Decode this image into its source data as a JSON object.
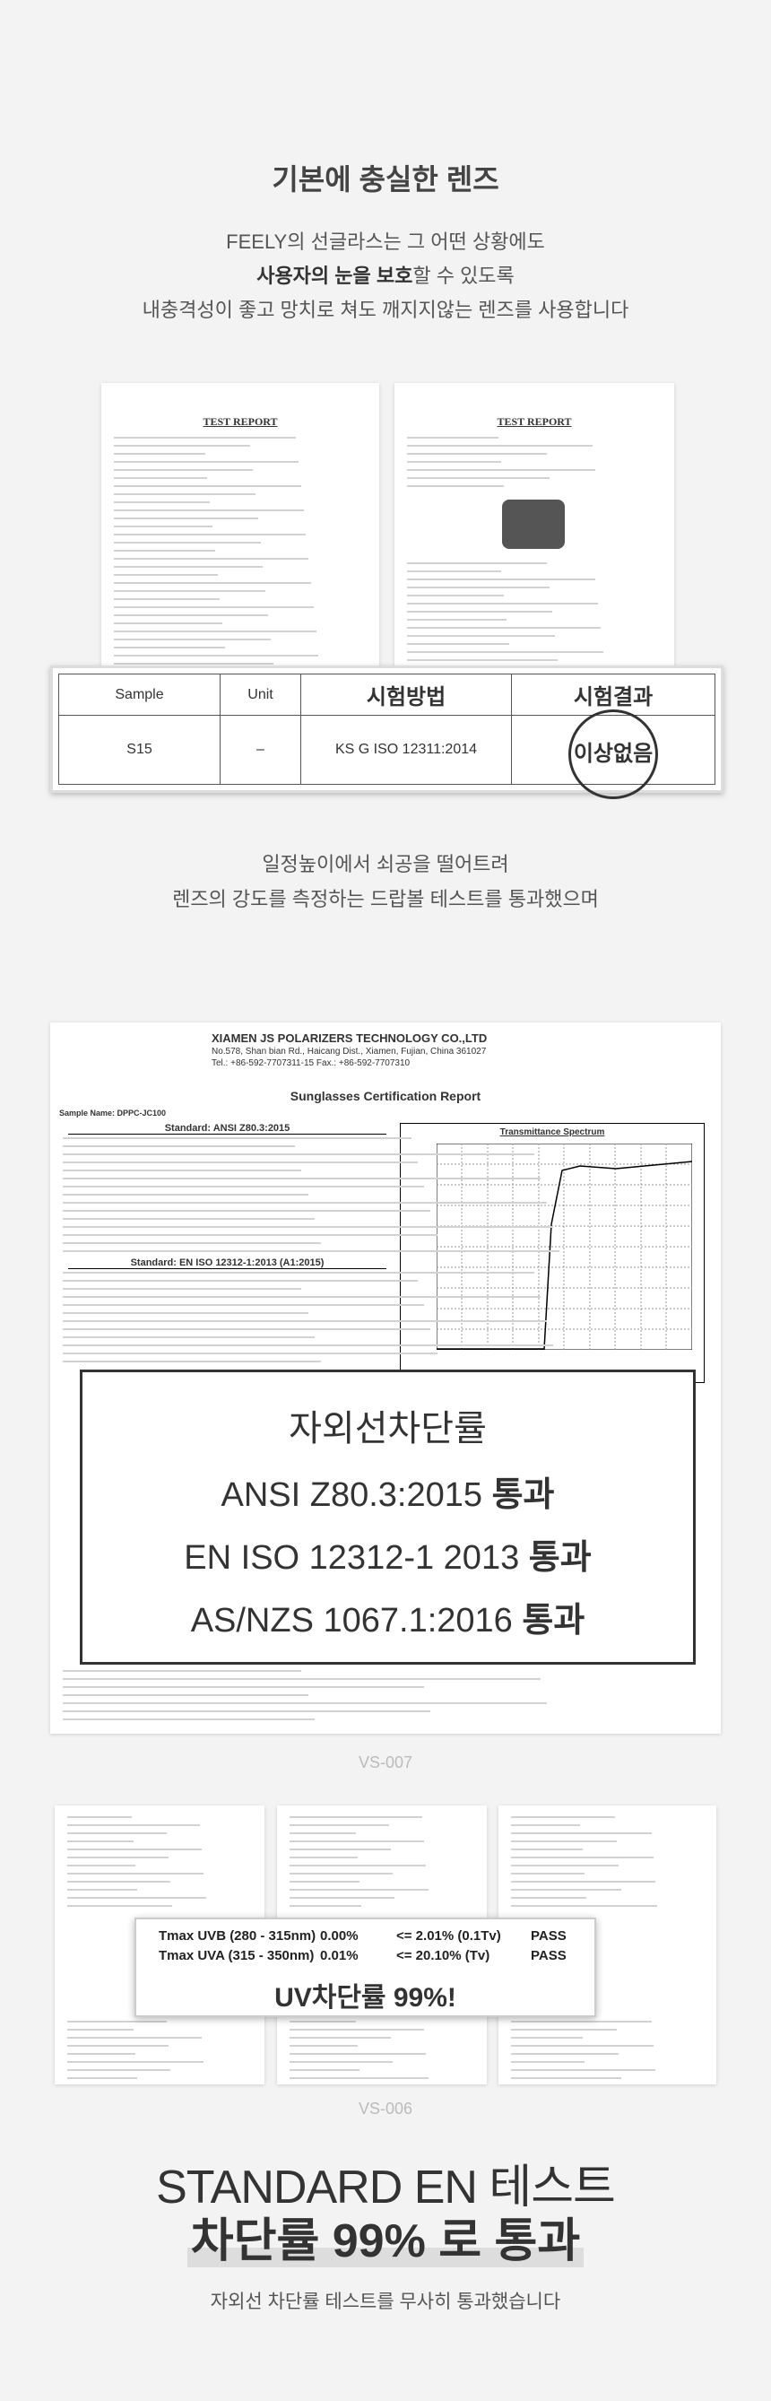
{
  "section1": {
    "title": "기본에 충실한 렌즈",
    "line1": "FEELY의 선글라스는 그 어떤 상황에도",
    "line2_bold": "사용자의 눈을 보호",
    "line2_rest": "할 수 있도록",
    "line3": "내충격성이 좋고 망치로 쳐도 깨지지않는 렌즈를 사용합니다"
  },
  "reports": {
    "title": "TEST REPORT",
    "table": {
      "headers": [
        "Sample",
        "Unit",
        "시험방법",
        "시험결과"
      ],
      "row": [
        "S15",
        "–",
        "KS G ISO 12311:2014",
        "이상없음"
      ]
    },
    "caption1": "일정높이에서 쇠공을 떨어트려",
    "caption2": "렌즈의 강도를 측정하는 드랍볼 테스트를 통과했으며"
  },
  "certificate": {
    "company": "XIAMEN JS POLARIZERS TECHNOLOGY CO.,LTD",
    "address": "No.578, Shan bian Rd., Haicang Dist., Xiamen, Fujian, China 361027",
    "phone": "Tel.: +86-592-7707311-15   Fax.: +86-592-7707310",
    "report_title": "Sunglasses Certification Report",
    "sample": "Sample Name:  DPPC-JC100",
    "standard1": "Standard: ANSI Z80.3:2015",
    "standard2": "Standard: EN ISO 12312-1:2013 (A1:2015)",
    "spectrum": "Transmittance Spectrum",
    "overlay": {
      "title": "자외선차단률",
      "lines": [
        {
          "text": "ANSI Z80.3:2015",
          "bold": "통과"
        },
        {
          "text": "EN ISO 12312-1 2013",
          "bold": "통과"
        },
        {
          "text": "AS/NZS 1067.1:2016",
          "bold": "통과"
        }
      ]
    },
    "code": "VS-007"
  },
  "uv_reports": {
    "rows": [
      [
        "Tmax UVB (280 - 315nm)",
        "0.00%",
        "<= 2.01% (0.1Tv)",
        "PASS"
      ],
      [
        "Tmax UVA (315 - 350nm)",
        "0.01%",
        "<= 20.10% (Tv)",
        "PASS"
      ]
    ],
    "headline": "UV차단률 99%!",
    "code": "VS-006"
  },
  "closing": {
    "title": "STANDARD EN 테스트",
    "highlight": "차단률 99% 로 통과",
    "text": "자외선 차단률 테스트를 무사히 통과했습니다"
  }
}
